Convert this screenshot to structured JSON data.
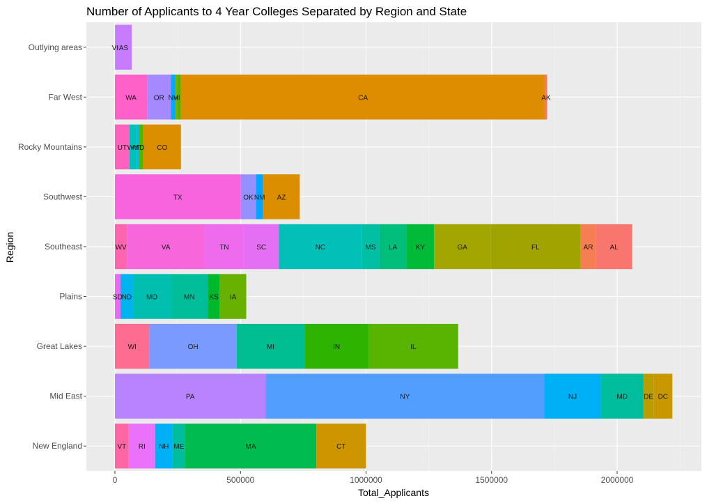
{
  "chart_data": {
    "type": "bar",
    "orientation": "horizontal",
    "stacked": true,
    "title": "Number of Applicants to 4 Year Colleges Separated by Region and State",
    "xlabel": "Total_Applicants",
    "ylabel": "Region",
    "xlim": [
      -100000,
      2300000
    ],
    "xticks": [
      {
        "value": 0,
        "label": "0"
      },
      {
        "value": 500000,
        "label": "500000"
      },
      {
        "value": 1000000,
        "label": "1000000"
      },
      {
        "value": 1500000,
        "label": "1500000"
      },
      {
        "value": 2000000,
        "label": "2000000"
      }
    ],
    "grid": true,
    "legend": "none",
    "categories": [
      {
        "region": "New England",
        "segments": [
          {
            "state": "VT",
            "value": 55000,
            "color": "#FF67A4"
          },
          {
            "state": "RI",
            "value": 105000,
            "color": "#EA71FA"
          },
          {
            "state": "NH",
            "value": 70000,
            "color": "#00B0F6"
          },
          {
            "state": "ME",
            "value": 50000,
            "color": "#00BD9D"
          },
          {
            "state": "MA",
            "value": 522000,
            "color": "#00BB4E"
          },
          {
            "state": "CT",
            "value": 198000,
            "color": "#CD9600"
          }
        ]
      },
      {
        "region": "Mid East",
        "segments": [
          {
            "state": "PA",
            "value": 600000,
            "color": "#B983FF"
          },
          {
            "state": "NY",
            "value": 1110000,
            "color": "#529EFF"
          },
          {
            "state": "NJ",
            "value": 225000,
            "color": "#00B0F6"
          },
          {
            "state": "MD",
            "value": 170000,
            "color": "#00BD9D"
          },
          {
            "state": "DE",
            "value": 40000,
            "color": "#BB9D00"
          },
          {
            "state": "DC",
            "value": 75000,
            "color": "#C99800"
          }
        ]
      },
      {
        "region": "Great Lakes",
        "segments": [
          {
            "state": "WI",
            "value": 137000,
            "color": "#FF6C91"
          },
          {
            "state": "OH",
            "value": 348000,
            "color": "#7B9AFF"
          },
          {
            "state": "MI",
            "value": 270000,
            "color": "#00BE92"
          },
          {
            "state": "IN",
            "value": 255000,
            "color": "#2EB400"
          },
          {
            "state": "IL",
            "value": 357000,
            "color": "#58B400"
          }
        ]
      },
      {
        "region": "Plains",
        "segments": [
          {
            "state": "SD",
            "value": 22000,
            "color": "#E76BF3"
          },
          {
            "state": "ND",
            "value": 50000,
            "color": "#00B4EF"
          },
          {
            "state": "MO",
            "value": 150000,
            "color": "#00BFAE"
          },
          {
            "state": "MN",
            "value": 148000,
            "color": "#00BE9A"
          },
          {
            "state": "KS",
            "value": 48000,
            "color": "#00B82C"
          },
          {
            "state": "IA",
            "value": 105000,
            "color": "#69B100"
          }
        ]
      },
      {
        "region": "Southeast",
        "segments": [
          {
            "state": "WV",
            "value": 48000,
            "color": "#FF64B0"
          },
          {
            "state": "VA",
            "value": 310000,
            "color": "#F766DB"
          },
          {
            "state": "TN",
            "value": 155000,
            "color": "#EE6BEE"
          },
          {
            "state": "SC",
            "value": 140000,
            "color": "#E46FF4"
          },
          {
            "state": "NC",
            "value": 330000,
            "color": "#00C0B8"
          },
          {
            "state": "MS",
            "value": 70000,
            "color": "#00BFA4"
          },
          {
            "state": "LA",
            "value": 108000,
            "color": "#00BF7D"
          },
          {
            "state": "KY",
            "value": 110000,
            "color": "#00BA38"
          },
          {
            "state": "GA",
            "value": 225000,
            "color": "#A3A500"
          },
          {
            "state": "FL",
            "value": 358000,
            "color": "#A0A300"
          },
          {
            "state": "AR",
            "value": 62000,
            "color": "#F57E53"
          },
          {
            "state": "AL",
            "value": 144000,
            "color": "#F8766D"
          }
        ]
      },
      {
        "region": "Southwest",
        "segments": [
          {
            "state": "TX",
            "value": 500000,
            "color": "#F864DE"
          },
          {
            "state": "OK",
            "value": 62000,
            "color": "#9590FF"
          },
          {
            "state": "NM",
            "value": 28000,
            "color": "#00A5FF"
          },
          {
            "state": "AZ",
            "value": 146000,
            "color": "#DB8E00"
          }
        ]
      },
      {
        "region": "Rocky Mountains",
        "segments": [
          {
            "state": "UT",
            "value": 58000,
            "color": "#FF62BC"
          },
          {
            "state": "WY",
            "value": 27000,
            "color": "#00C0B8"
          },
          {
            "state": "MT",
            "value": 10000,
            "color": "#00B8E5"
          },
          {
            "state": "ID",
            "value": 18000,
            "color": "#53B400"
          },
          {
            "state": "CO",
            "value": 150000,
            "color": "#DB8E00"
          }
        ]
      },
      {
        "region": "Far West",
        "segments": [
          {
            "state": "WA",
            "value": 128000,
            "color": "#FF61C9"
          },
          {
            "state": "OR",
            "value": 95000,
            "color": "#A58AFF"
          },
          {
            "state": "NV",
            "value": 18000,
            "color": "#00A9FF"
          },
          {
            "state": "HI",
            "value": 10000,
            "color": "#72B000"
          },
          {
            "state": "",
            "value": 12000,
            "color": "#5BB300"
          },
          {
            "state": "CA",
            "value": 1450000,
            "color": "#DE8C00"
          },
          {
            "state": "AK",
            "value": 8000,
            "color": "#F8766D"
          }
        ]
      },
      {
        "region": "Outlying areas",
        "segments": [
          {
            "state": "VI",
            "value": 2000,
            "color": "#C77CFF"
          },
          {
            "state": "AS",
            "value": 65000,
            "color": "#C77CFF"
          }
        ]
      }
    ]
  }
}
